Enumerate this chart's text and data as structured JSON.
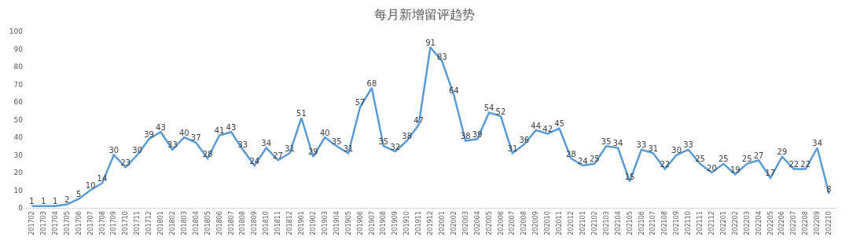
{
  "chart_data": {
    "type": "line",
    "title": "每月新增留评趋势",
    "categories": [
      "201702",
      "201703",
      "201704",
      "201705",
      "201706",
      "201707",
      "201708",
      "201709",
      "201710",
      "201711",
      "201712",
      "201801",
      "201802",
      "201803",
      "201804",
      "201805",
      "201806",
      "201807",
      "201808",
      "201809",
      "201810",
      "201811",
      "201812",
      "201901",
      "201902",
      "201903",
      "201904",
      "201905",
      "201906",
      "201907",
      "201908",
      "201909",
      "201910",
      "201911",
      "201912",
      "202001",
      "202002",
      "202003",
      "202004",
      "202005",
      "202006",
      "202007",
      "202008",
      "202009",
      "202010",
      "202011",
      "202012",
      "202101",
      "202102",
      "202103",
      "202104",
      "202105",
      "202106",
      "202107",
      "202108",
      "202109",
      "202110",
      "202111",
      "202112",
      "202201",
      "202202",
      "202203",
      "202204",
      "202205",
      "202206",
      "202207",
      "202208",
      "202209",
      "202210"
    ],
    "values": [
      1,
      1,
      1,
      2,
      5,
      10,
      14,
      30,
      23,
      30,
      39,
      43,
      33,
      40,
      37,
      28,
      41,
      43,
      33,
      24,
      34,
      27,
      31,
      51,
      29,
      40,
      35,
      31,
      57,
      68,
      35,
      32,
      38,
      47,
      91,
      83,
      64,
      38,
      39,
      54,
      52,
      31,
      36,
      44,
      42,
      45,
      28,
      24,
      25,
      35,
      34,
      15,
      33,
      31,
      22,
      30,
      33,
      25,
      20,
      25,
      19,
      25,
      27,
      17,
      29,
      22,
      22,
      34,
      8
    ],
    "color": "#5b9bd5",
    "ylim": [
      0,
      100
    ],
    "yticks": [
      0,
      10,
      20,
      30,
      40,
      50,
      60,
      70,
      80,
      90,
      100
    ],
    "grid": false,
    "legend": false,
    "marker": "none",
    "line_style": "solid",
    "data_labels": true
  }
}
